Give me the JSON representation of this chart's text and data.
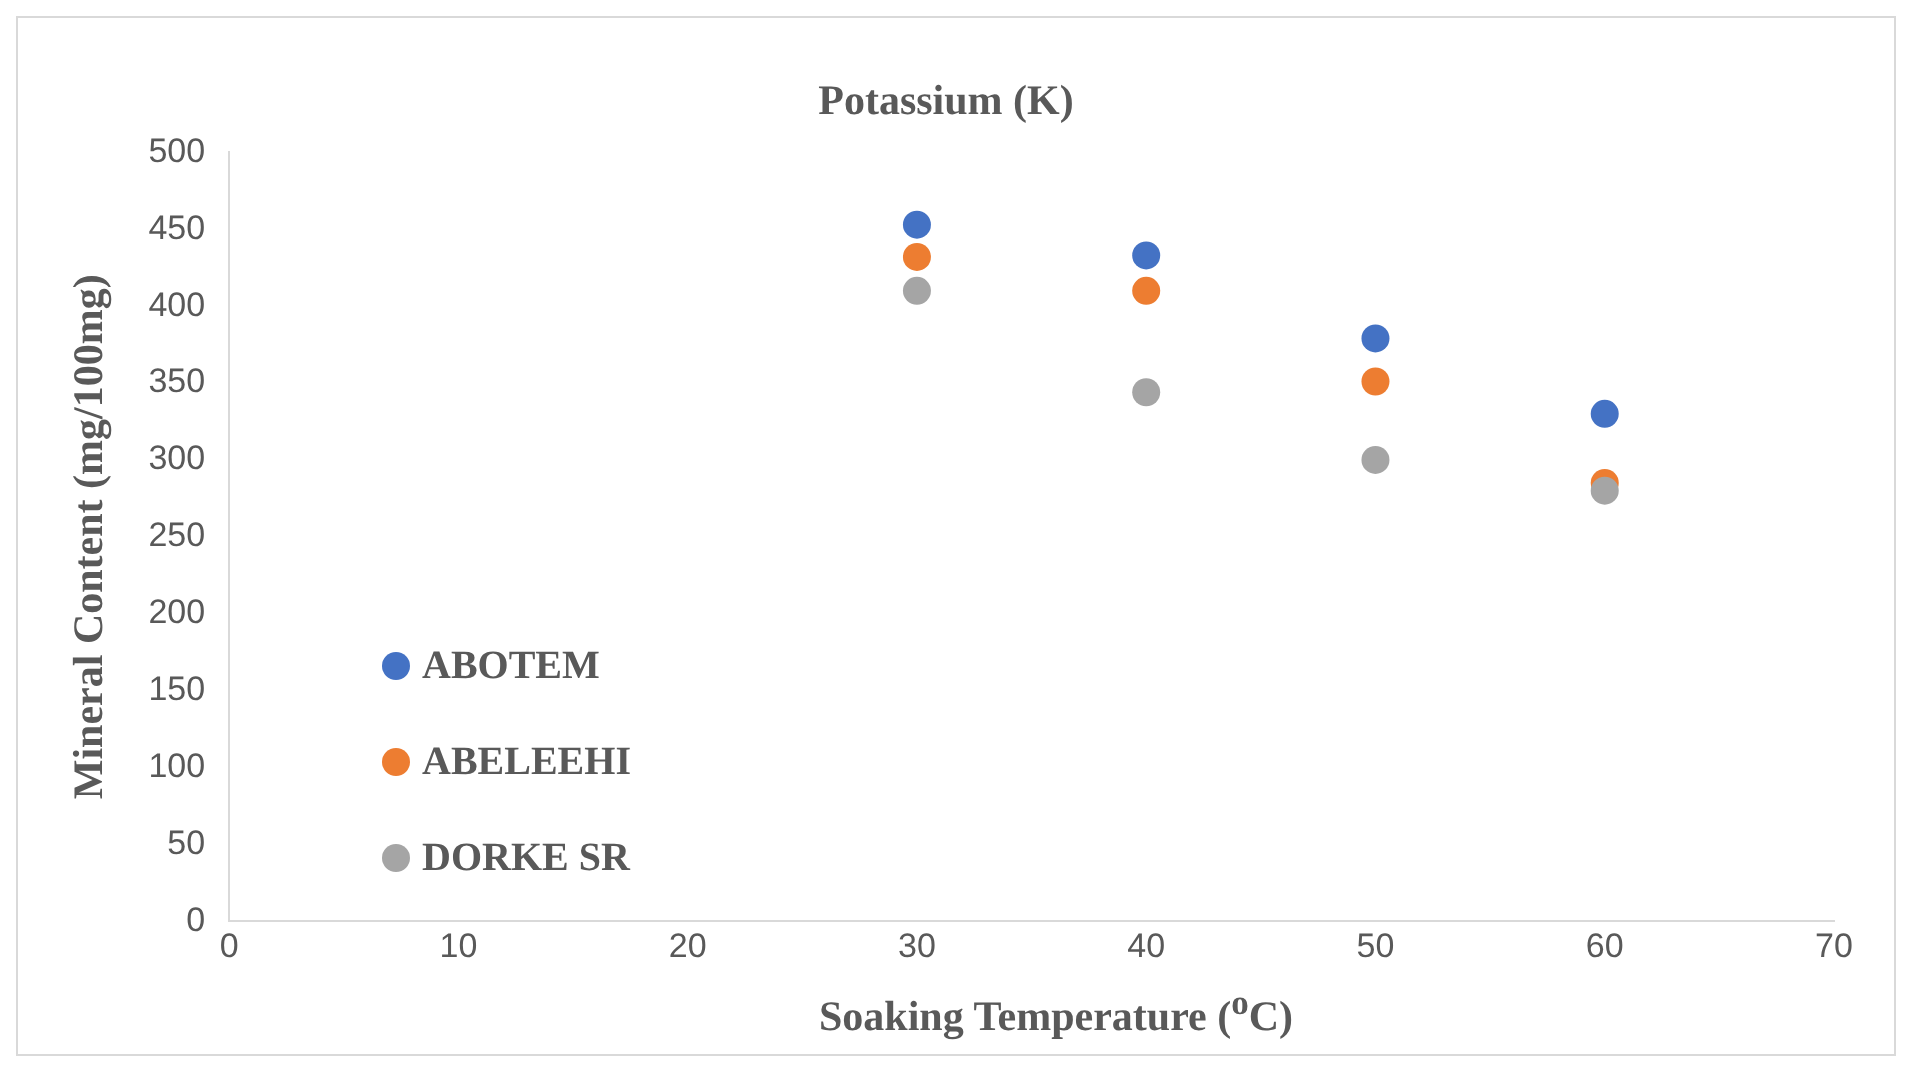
{
  "chart_data": {
    "type": "scatter",
    "title": "Potassium (K)",
    "xlabel": "Soaking Temperature ($^{o}$C)",
    "ylabel": "Mineral Content (mg/100mg)",
    "x": [
      30,
      40,
      50,
      60
    ],
    "series": [
      {
        "name": "ABOTEM",
        "color": "#4472c4",
        "values": [
          453,
          433,
          379,
          330
        ]
      },
      {
        "name": "ABELEEHI",
        "color": "#ed7d31",
        "values": [
          432,
          410,
          351,
          285
        ]
      },
      {
        "name": "DORKE SR",
        "color": "#a5a5a5",
        "values": [
          410,
          344,
          300,
          280
        ]
      }
    ],
    "xlim": [
      0,
      70
    ],
    "xticks": [
      0,
      10,
      20,
      30,
      40,
      50,
      60,
      70
    ],
    "ylim": [
      0,
      500
    ],
    "yticks": [
      0,
      50,
      100,
      150,
      200,
      250,
      300,
      350,
      400,
      450,
      500
    ],
    "grid": false,
    "legend": "left",
    "marker": "circle"
  }
}
